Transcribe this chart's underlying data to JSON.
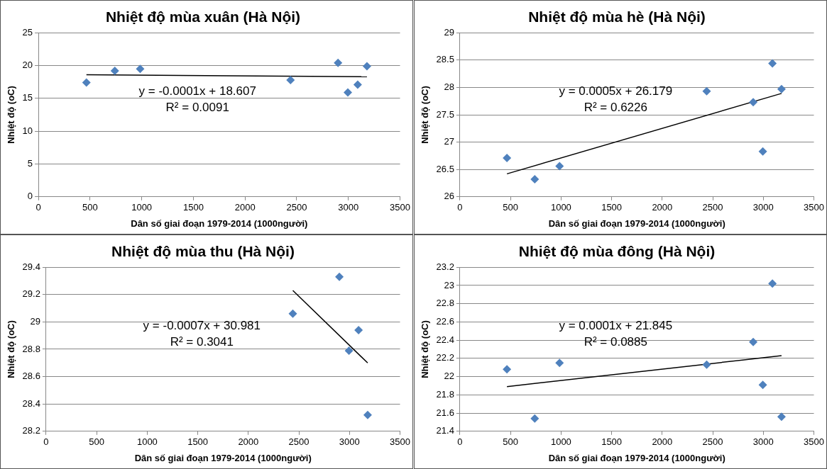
{
  "chart_data": [
    {
      "type": "scatter",
      "title": "Nhiệt độ mùa xuân (Hà Nội)",
      "xlabel": "Dân số giai đoạn 1979-2014 (1000người)",
      "ylabel": "Nhiệt độ (oC)",
      "x": [
        465,
        740,
        985,
        2440,
        2900,
        2995,
        3090,
        3180
      ],
      "series": [
        {
          "color": "#4f81bd",
          "marker": "diamond",
          "values": [
            17.4,
            19.2,
            19.5,
            17.8,
            20.4,
            15.9,
            17.1,
            19.9
          ]
        },
        {
          "type": "line",
          "color": "#000000",
          "marker": "none",
          "x": [
            465,
            3180
          ],
          "values": [
            18.6,
            18.3
          ]
        }
      ],
      "xlim": [
        0,
        3500
      ],
      "xticks": [
        0,
        500,
        1000,
        1500,
        2000,
        2500,
        3000,
        3500
      ],
      "ylim": [
        0,
        25
      ],
      "yticks": [
        0,
        5,
        10,
        15,
        20,
        25
      ],
      "grid": "y",
      "legend": false,
      "annotations": [
        "y = -0.0001x + 18.607",
        "R² = 0.0091"
      ]
    },
    {
      "type": "scatter",
      "title": "Nhiệt độ mùa hè (Hà Nội)",
      "xlabel": "Dân số giai đoạn 1979-2014 (1000người)",
      "ylabel": "Nhiệt độ (oC)",
      "x": [
        465,
        740,
        985,
        2440,
        2900,
        2995,
        3090,
        3180
      ],
      "series": [
        {
          "color": "#4f81bd",
          "marker": "diamond",
          "values": [
            26.71,
            26.32,
            26.56,
            27.93,
            27.73,
            26.83,
            28.44,
            27.97
          ]
        },
        {
          "type": "line",
          "color": "#000000",
          "marker": "none",
          "x": [
            465,
            3180
          ],
          "values": [
            26.42,
            27.89
          ]
        }
      ],
      "xlim": [
        0,
        3500
      ],
      "xticks": [
        0,
        500,
        1000,
        1500,
        2000,
        2500,
        3000,
        3500
      ],
      "ylim": [
        26,
        29
      ],
      "yticks": [
        26,
        26.5,
        27,
        27.5,
        28,
        28.5,
        29
      ],
      "grid": "y",
      "legend": false,
      "annotations": [
        "y = 0.0005x + 26.179",
        "R² = 0.6226"
      ]
    },
    {
      "type": "scatter",
      "title": "Nhiệt độ mùa thu (Hà Nội)",
      "xlabel": "Dân số giai đoạn 1979-2014 (1000người)",
      "ylabel": "Nhiệt độ (oC)",
      "x": [
        2440,
        2900,
        2995,
        3090,
        3180
      ],
      "series": [
        {
          "color": "#4f81bd",
          "marker": "diamond",
          "values": [
            29.06,
            29.33,
            28.79,
            28.94,
            28.32
          ]
        },
        {
          "type": "line",
          "color": "#000000",
          "marker": "none",
          "x": [
            2440,
            3180
          ],
          "values": [
            29.23,
            28.7
          ]
        }
      ],
      "xlim": [
        0,
        3500
      ],
      "xticks": [
        0,
        500,
        1000,
        1500,
        2000,
        2500,
        3000,
        3500
      ],
      "ylim": [
        28.2,
        29.4
      ],
      "yticks": [
        28.2,
        28.4,
        28.6,
        28.8,
        29,
        29.2,
        29.4
      ],
      "grid": "y",
      "legend": false,
      "annotations": [
        "y = -0.0007x + 30.981",
        "R² = 0.3041"
      ]
    },
    {
      "type": "scatter",
      "title": "Nhiệt độ mùa đông (Hà Nội)",
      "xlabel": "Dân số giai đoạn 1979-2014 (1000người)",
      "ylabel": "Nhiệt độ (oC)",
      "x": [
        465,
        740,
        985,
        2440,
        2900,
        2995,
        3090,
        3180
      ],
      "series": [
        {
          "color": "#4f81bd",
          "marker": "diamond",
          "values": [
            22.08,
            21.54,
            22.15,
            22.13,
            22.38,
            21.91,
            23.02,
            21.56
          ]
        },
        {
          "type": "line",
          "color": "#000000",
          "marker": "none",
          "x": [
            465,
            3180
          ],
          "values": [
            21.89,
            22.23
          ]
        }
      ],
      "xlim": [
        0,
        3500
      ],
      "xticks": [
        0,
        500,
        1000,
        1500,
        2000,
        2500,
        3000,
        3500
      ],
      "ylim": [
        21.4,
        23.2
      ],
      "yticks": [
        21.4,
        21.6,
        21.8,
        22,
        22.2,
        22.4,
        22.6,
        22.8,
        23,
        23.2
      ],
      "grid": "y",
      "legend": false,
      "annotations": [
        "y = 0.0001x + 21.845",
        "R² = 0.0885"
      ]
    }
  ]
}
